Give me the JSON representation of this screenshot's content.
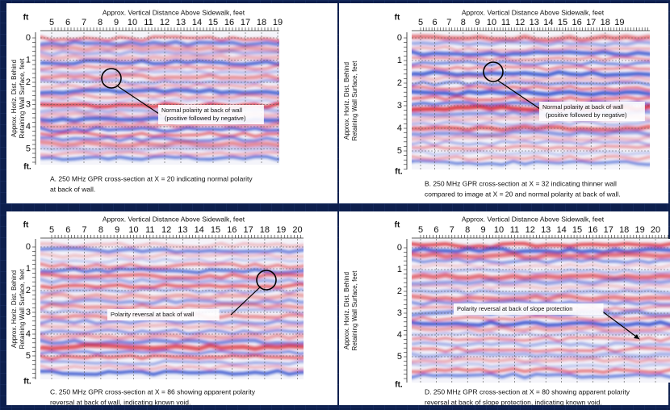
{
  "panels": [
    {
      "title": "Approx. Vertical Distance Above Sidewalk, feet",
      "x_ticks": [
        5,
        6,
        7,
        8,
        9,
        10,
        11,
        12,
        13,
        14,
        15,
        16,
        17,
        18,
        19
      ],
      "y_ticks": [
        0,
        1,
        2,
        3,
        4,
        5
      ],
      "unit_top": "ft",
      "unit_bottom": "ft.",
      "y_label": [
        "Approx. Horiz. Dist. Behind",
        "Retaining Wall Surface, feet"
      ],
      "annotation": [
        "Normal polarity at back of wall",
        "(positive followed by negative)"
      ],
      "caption": [
        "A. 250 MHz GPR cross-section at X = 20 indicating normal polarity",
        "at back of wall."
      ]
    },
    {
      "title": "Approx. Vertical Distance Above Sidewalk, feet",
      "x_ticks": [
        5,
        6,
        7,
        8,
        9,
        10,
        11,
        12,
        13,
        14,
        15,
        16,
        17,
        18,
        19
      ],
      "y_ticks": [
        0,
        1,
        2,
        3,
        4,
        5
      ],
      "unit_top": "ft",
      "unit_bottom": "ft.",
      "y_label": [
        "Approx. Horiz. Dist. Behind",
        "Retaining Wall Surface, feet"
      ],
      "annotation": [
        "Normal polarity at back of wall",
        "(positive followed by negative)"
      ],
      "caption": [
        "B. 250 MHz GPR cross-section at X = 32 indicating thinner wall",
        "compared to image at X = 20 and normal polarity at back  of wall."
      ]
    },
    {
      "title": "Approx. Vertical Distance Above Sidewalk, feet",
      "x_ticks": [
        5,
        6,
        7,
        8,
        9,
        10,
        11,
        12,
        13,
        14,
        15,
        16,
        17,
        18,
        19,
        20
      ],
      "y_ticks": [
        0,
        1,
        2,
        3,
        4,
        5
      ],
      "unit_top": "ft",
      "unit_bottom": "ft.",
      "y_label": [
        "Approx. Horiz. Dist. Behind",
        "Retaining Wall Surface, feet"
      ],
      "annotation": [
        "Polarity reversal at back of wall"
      ],
      "caption": [
        "C. 250 MHz GPR cross-section at X = 86 showing apparent polarity",
        "reversal at back of wall, indicating known void."
      ]
    },
    {
      "title": "Approx. Vertical Distance Above Sidewalk, feet",
      "x_ticks": [
        5,
        6,
        7,
        8,
        9,
        10,
        11,
        12,
        13,
        14,
        15,
        16,
        17,
        18,
        19,
        20
      ],
      "y_ticks": [
        0,
        1,
        2,
        3,
        4,
        5
      ],
      "unit_top": "ft",
      "unit_bottom": "ft.",
      "y_label": [
        "Approx. Horiz. Dist. Behind",
        "Retaining Wall Surface, feet"
      ],
      "annotation": [
        "Polarity reversal at back of slope protection"
      ],
      "caption": [
        "D. 250 MHz GPR cross-section at X = 80 showing apparent polarity",
        "reversal at back of slope protection, indicating known void."
      ]
    }
  ]
}
